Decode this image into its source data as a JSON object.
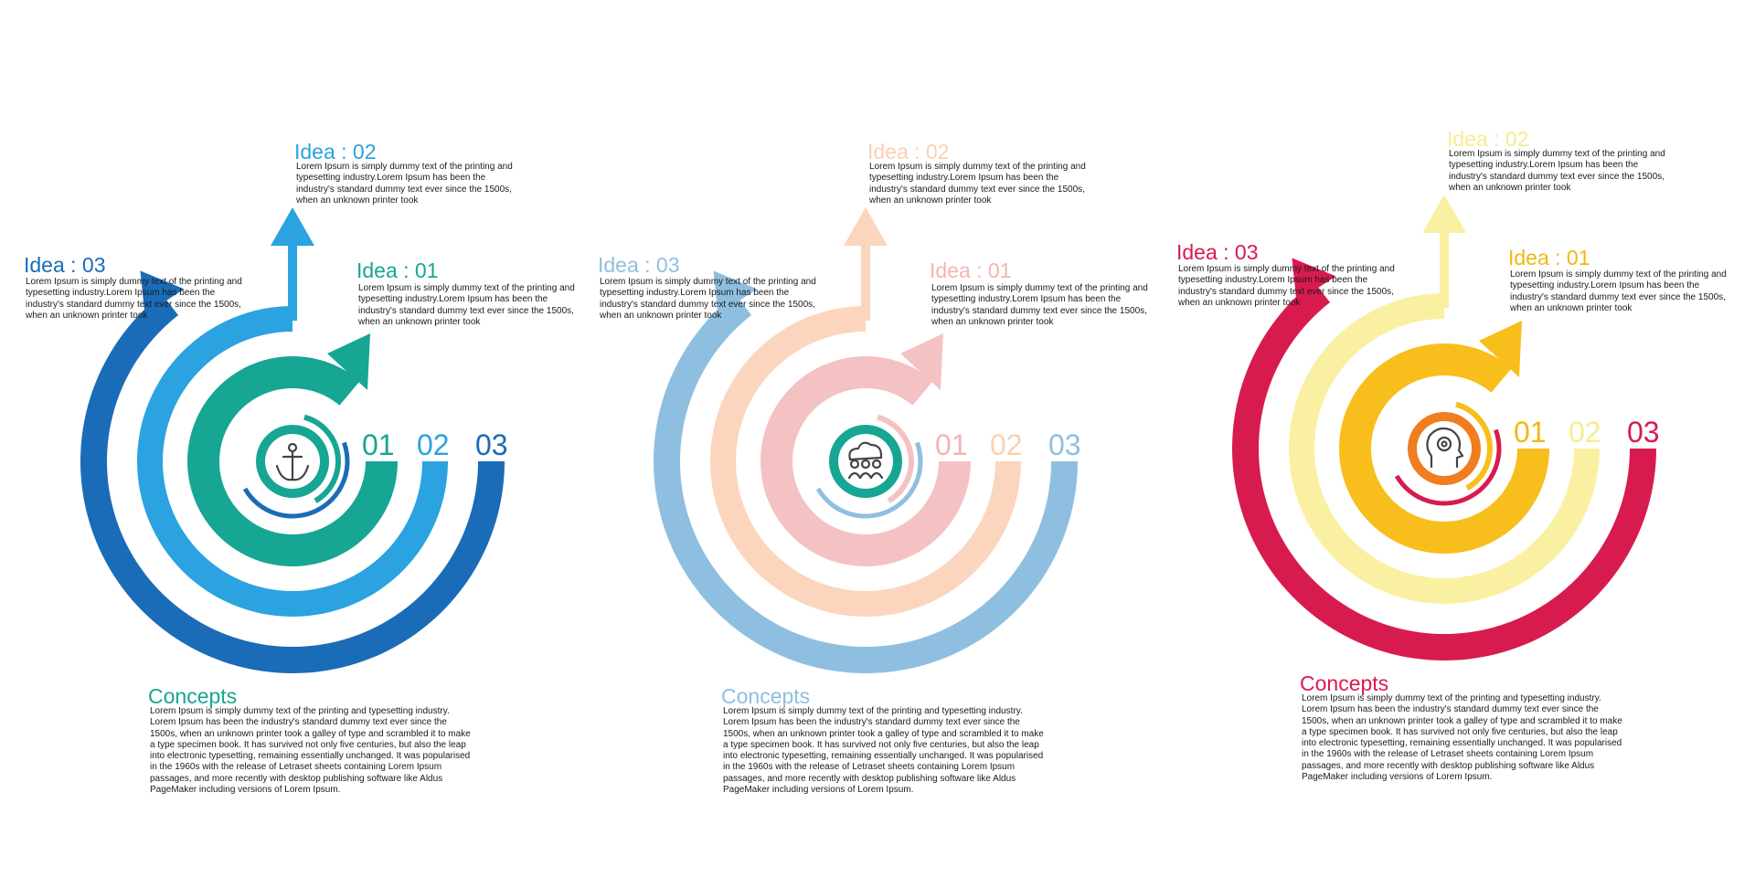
{
  "infographics": [
    {
      "colors": {
        "ring1": "#16a693",
        "ring2": "#2aa3e0",
        "ring3": "#1a6cb8",
        "title1": "#16a693",
        "title2": "#2aa3e0",
        "title3": "#1a6cb8",
        "center": "#16a693",
        "concepts": "#16a693"
      },
      "icon": "anchor-icon",
      "ideas": [
        {
          "title": "Idea : 01",
          "text": "Lorem Ipsum is simply dummy text of the printing and typesetting industry.Lorem Ipsum has been the industry's standard dummy text ever since the 1500s, when an unknown printer took"
        },
        {
          "title": "Idea : 02",
          "text": "Lorem Ipsum is simply dummy text of the printing and typesetting industry.Lorem Ipsum has been the industry's standard dummy text ever since the 1500s, when an unknown printer took"
        },
        {
          "title": "Idea : 03",
          "text": "Lorem Ipsum is simply dummy text of the printing and typesetting industry.Lorem Ipsum has been the industry's standard dummy text ever since the 1500s, when an unknown printer took"
        }
      ],
      "numbers": [
        "01",
        "02",
        "03"
      ],
      "concepts": {
        "title": "Concepts",
        "text": "Lorem Ipsum is simply dummy text of the printing and typesetting industry. Lorem Ipsum has been the industry's standard dummy text ever since the 1500s, when an unknown printer took a galley of type and scrambled it to make a type specimen book. It has survived not only five centuries, but also the leap into electronic typesetting, remaining essentially unchanged. It was popularised in the 1960s with the release of Letraset sheets containing Lorem Ipsum passages, and more recently with desktop publishing software like Aldus PageMaker including versions of Lorem Ipsum."
      }
    },
    {
      "colors": {
        "ring1": "#f4c2c2",
        "ring2": "#fbd5bd",
        "ring3": "#8fbfe0",
        "title1": "#f4b4b4",
        "title2": "#fbd0b2",
        "title3": "#8fbfe0",
        "center": "#16a693",
        "concepts": "#8fbfe0"
      },
      "icon": "group-cloud-icon",
      "ideas": [
        {
          "title": "Idea : 01",
          "text": "Lorem Ipsum is simply dummy text of the printing and typesetting industry.Lorem Ipsum has been the industry's standard dummy text ever since the 1500s, when an unknown printer took"
        },
        {
          "title": "Idea : 02",
          "text": "Lorem Ipsum is simply dummy text of the printing and typesetting industry.Lorem Ipsum has been the industry's standard dummy text ever since the 1500s, when an unknown printer took"
        },
        {
          "title": "Idea : 03",
          "text": "Lorem Ipsum is simply dummy text of the printing and typesetting industry.Lorem Ipsum has been the industry's standard dummy text ever since the 1500s, when an unknown printer took"
        }
      ],
      "numbers": [
        "01",
        "02",
        "03"
      ],
      "concepts": {
        "title": "Concepts",
        "text": "Lorem Ipsum is simply dummy text of the printing and typesetting industry. Lorem Ipsum has been the industry's standard dummy text ever since the 1500s, when an unknown printer took a galley of type and scrambled it to make a type specimen book. It has survived not only five centuries, but also the leap into electronic typesetting, remaining essentially unchanged. It was popularised in the 1960s with the release of Letraset sheets containing Lorem Ipsum passages, and more recently with desktop publishing software like Aldus PageMaker including versions of Lorem Ipsum."
      }
    },
    {
      "colors": {
        "ring1": "#f8be1b",
        "ring2": "#faf0a2",
        "ring3": "#d81b4e",
        "title1": "#f2b811",
        "title2": "#f8ec8c",
        "title3": "#d81b4e",
        "center": "#f07d20",
        "concepts": "#d81b4e"
      },
      "icon": "gear-head-icon",
      "ideas": [
        {
          "title": "Idea : 01",
          "text": "Lorem Ipsum is simply dummy text of the printing and typesetting industry.Lorem Ipsum has been the industry's standard dummy text ever since the 1500s, when an unknown printer took"
        },
        {
          "title": "Idea : 02",
          "text": "Lorem Ipsum is simply dummy text of the printing and typesetting industry.Lorem Ipsum has been the industry's standard dummy text ever since the 1500s, when an unknown printer took"
        },
        {
          "title": "Idea : 03",
          "text": "Lorem Ipsum is simply dummy text of the printing and typesetting industry.Lorem Ipsum has been the industry's standard dummy text ever since the 1500s, when an unknown printer took"
        }
      ],
      "numbers": [
        "01",
        "02",
        "03"
      ],
      "concepts": {
        "title": "Concepts",
        "text": "Lorem Ipsum is simply dummy text of the printing and typesetting industry. Lorem Ipsum has been the industry's standard dummy text ever since the 1500s, when an unknown printer took a galley of type and scrambled it to make a type specimen book. It has survived not only five centuries, but also the leap into electronic typesetting, remaining essentially unchanged. It was popularised in the 1960s with the release of Letraset sheets containing Lorem Ipsum passages, and more recently with desktop publishing software like Aldus PageMaker including versions of Lorem Ipsum."
      }
    }
  ]
}
